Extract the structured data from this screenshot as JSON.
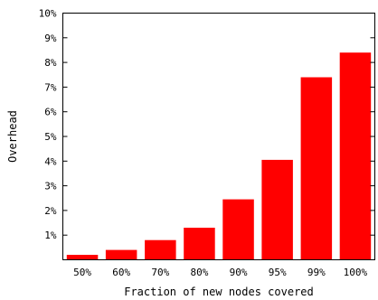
{
  "chart_data": {
    "type": "bar",
    "title": "",
    "xlabel": "Fraction of new nodes covered",
    "ylabel": "Overhead",
    "categories": [
      "50%",
      "60%",
      "70%",
      "80%",
      "90%",
      "95%",
      "99%",
      "100%"
    ],
    "values": [
      0.2,
      0.4,
      0.8,
      1.3,
      2.45,
      4.05,
      7.4,
      8.4
    ],
    "ylim": [
      0,
      10
    ],
    "yticks": [
      1,
      2,
      3,
      4,
      5,
      6,
      7,
      8,
      9,
      10
    ],
    "ytick_labels": [
      "1%",
      "2%",
      "3%",
      "4%",
      "5%",
      "6%",
      "7%",
      "8%",
      "9%",
      "10%"
    ],
    "grid": false,
    "legend": "none",
    "bar_color": "#ff0000",
    "axis_color": "#000000"
  }
}
